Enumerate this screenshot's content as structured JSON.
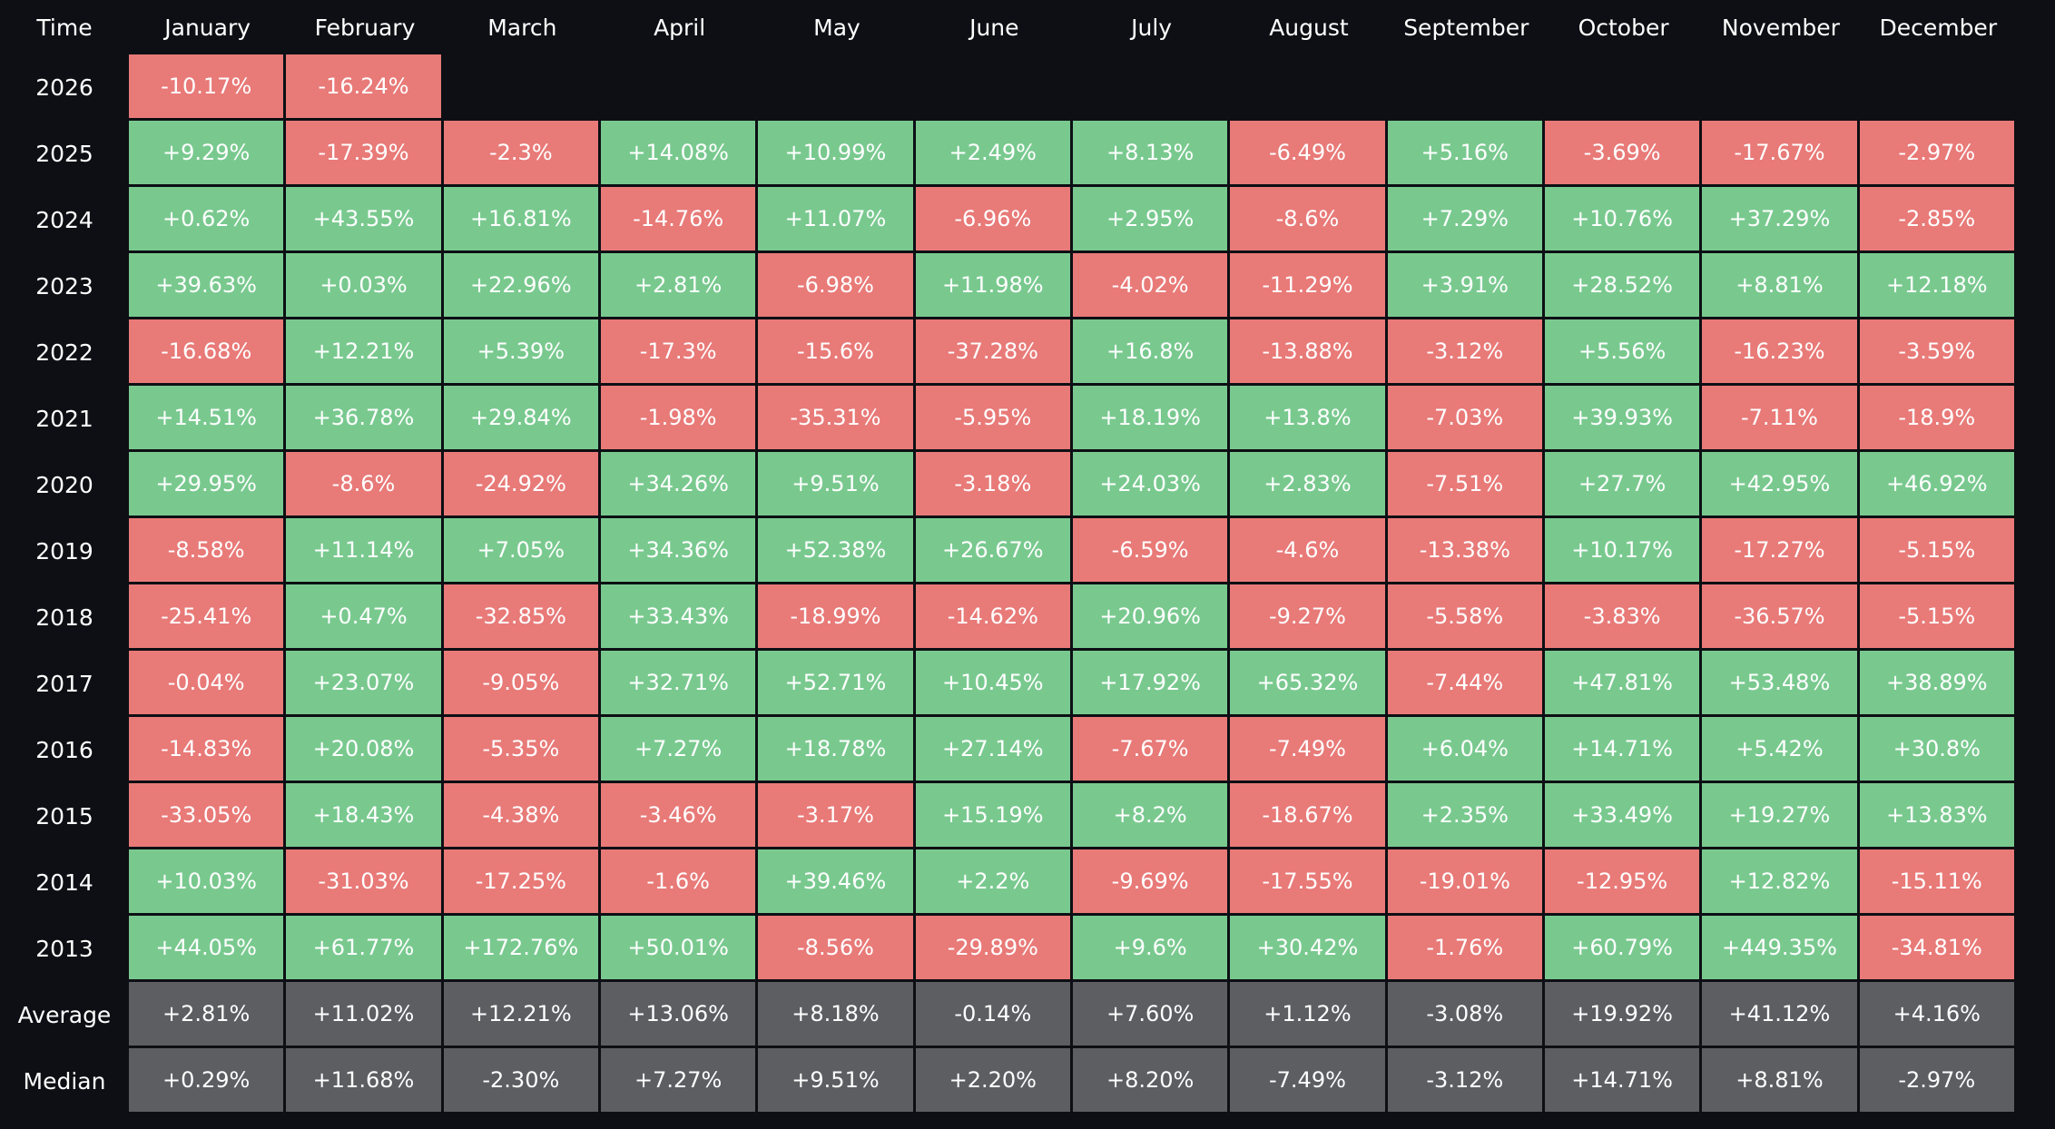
{
  "colors": {
    "positive": "#79c98f",
    "negative": "#e87a78",
    "summary": "#5d5e62",
    "background": "#0d0f14"
  },
  "chart_data": {
    "type": "heatmap",
    "corner_label": "Time",
    "columns": [
      "January",
      "February",
      "March",
      "April",
      "May",
      "June",
      "July",
      "August",
      "September",
      "October",
      "November",
      "December"
    ],
    "rows": [
      {
        "label": "2026",
        "values": [
          "-10.17%",
          "-16.24%",
          null,
          null,
          null,
          null,
          null,
          null,
          null,
          null,
          null,
          null
        ]
      },
      {
        "label": "2025",
        "values": [
          "+9.29%",
          "-17.39%",
          "-2.3%",
          "+14.08%",
          "+10.99%",
          "+2.49%",
          "+8.13%",
          "-6.49%",
          "+5.16%",
          "-3.69%",
          "-17.67%",
          "-2.97%"
        ]
      },
      {
        "label": "2024",
        "values": [
          "+0.62%",
          "+43.55%",
          "+16.81%",
          "-14.76%",
          "+11.07%",
          "-6.96%",
          "+2.95%",
          "-8.6%",
          "+7.29%",
          "+10.76%",
          "+37.29%",
          "-2.85%"
        ]
      },
      {
        "label": "2023",
        "values": [
          "+39.63%",
          "+0.03%",
          "+22.96%",
          "+2.81%",
          "-6.98%",
          "+11.98%",
          "-4.02%",
          "-11.29%",
          "+3.91%",
          "+28.52%",
          "+8.81%",
          "+12.18%"
        ]
      },
      {
        "label": "2022",
        "values": [
          "-16.68%",
          "+12.21%",
          "+5.39%",
          "-17.3%",
          "-15.6%",
          "-37.28%",
          "+16.8%",
          "-13.88%",
          "-3.12%",
          "+5.56%",
          "-16.23%",
          "-3.59%"
        ]
      },
      {
        "label": "2021",
        "values": [
          "+14.51%",
          "+36.78%",
          "+29.84%",
          "-1.98%",
          "-35.31%",
          "-5.95%",
          "+18.19%",
          "+13.8%",
          "-7.03%",
          "+39.93%",
          "-7.11%",
          "-18.9%"
        ]
      },
      {
        "label": "2020",
        "values": [
          "+29.95%",
          "-8.6%",
          "-24.92%",
          "+34.26%",
          "+9.51%",
          "-3.18%",
          "+24.03%",
          "+2.83%",
          "-7.51%",
          "+27.7%",
          "+42.95%",
          "+46.92%"
        ]
      },
      {
        "label": "2019",
        "values": [
          "-8.58%",
          "+11.14%",
          "+7.05%",
          "+34.36%",
          "+52.38%",
          "+26.67%",
          "-6.59%",
          "-4.6%",
          "-13.38%",
          "+10.17%",
          "-17.27%",
          "-5.15%"
        ]
      },
      {
        "label": "2018",
        "values": [
          "-25.41%",
          "+0.47%",
          "-32.85%",
          "+33.43%",
          "-18.99%",
          "-14.62%",
          "+20.96%",
          "-9.27%",
          "-5.58%",
          "-3.83%",
          "-36.57%",
          "-5.15%"
        ]
      },
      {
        "label": "2017",
        "values": [
          "-0.04%",
          "+23.07%",
          "-9.05%",
          "+32.71%",
          "+52.71%",
          "+10.45%",
          "+17.92%",
          "+65.32%",
          "-7.44%",
          "+47.81%",
          "+53.48%",
          "+38.89%"
        ]
      },
      {
        "label": "2016",
        "values": [
          "-14.83%",
          "+20.08%",
          "-5.35%",
          "+7.27%",
          "+18.78%",
          "+27.14%",
          "-7.67%",
          "-7.49%",
          "+6.04%",
          "+14.71%",
          "+5.42%",
          "+30.8%"
        ]
      },
      {
        "label": "2015",
        "values": [
          "-33.05%",
          "+18.43%",
          "-4.38%",
          "-3.46%",
          "-3.17%",
          "+15.19%",
          "+8.2%",
          "-18.67%",
          "+2.35%",
          "+33.49%",
          "+19.27%",
          "+13.83%"
        ]
      },
      {
        "label": "2014",
        "values": [
          "+10.03%",
          "-31.03%",
          "-17.25%",
          "-1.6%",
          "+39.46%",
          "+2.2%",
          "-9.69%",
          "-17.55%",
          "-19.01%",
          "-12.95%",
          "+12.82%",
          "-15.11%"
        ]
      },
      {
        "label": "2013",
        "values": [
          "+44.05%",
          "+61.77%",
          "+172.76%",
          "+50.01%",
          "-8.56%",
          "-29.89%",
          "+9.6%",
          "+30.42%",
          "-1.76%",
          "+60.79%",
          "+449.35%",
          "-34.81%"
        ]
      }
    ],
    "summary_rows": [
      {
        "label": "Average",
        "values": [
          "+2.81%",
          "+11.02%",
          "+12.21%",
          "+13.06%",
          "+8.18%",
          "-0.14%",
          "+7.60%",
          "+1.12%",
          "-3.08%",
          "+19.92%",
          "+41.12%",
          "+4.16%"
        ]
      },
      {
        "label": "Median",
        "values": [
          "+0.29%",
          "+11.68%",
          "-2.30%",
          "+7.27%",
          "+9.51%",
          "+2.20%",
          "+8.20%",
          "-7.49%",
          "-3.12%",
          "+14.71%",
          "+8.81%",
          "-2.97%"
        ]
      }
    ]
  }
}
